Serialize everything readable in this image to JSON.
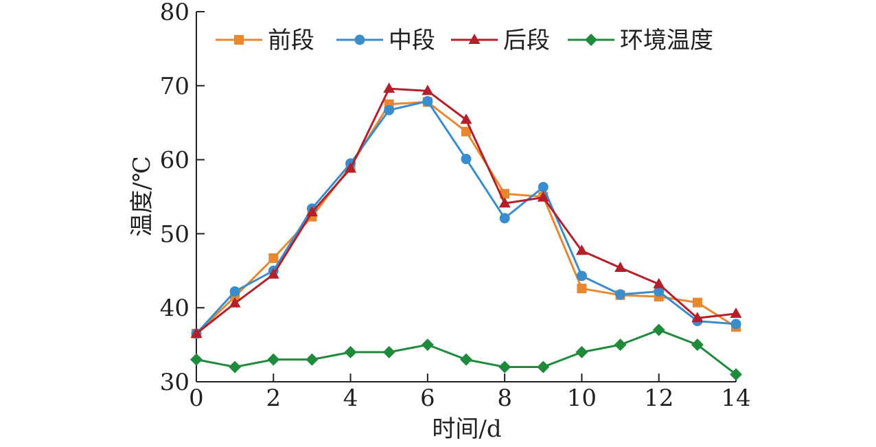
{
  "chart_data": {
    "type": "line",
    "xlabel": "时间/d",
    "ylabel": "温度/℃",
    "xlim": [
      0,
      14
    ],
    "ylim": [
      30,
      80
    ],
    "xticks": [
      0,
      2,
      4,
      6,
      8,
      10,
      12,
      14
    ],
    "yticks": [
      30,
      40,
      50,
      60,
      70,
      80
    ],
    "grid": false,
    "legend_position": "top",
    "x": [
      0,
      1,
      2,
      3,
      4,
      5,
      6,
      7,
      8,
      9,
      10,
      11,
      12,
      13,
      14
    ],
    "series": [
      {
        "name": "前段",
        "color": "#e8872e",
        "marker": "square",
        "values": [
          36.5,
          41.5,
          46.7,
          52.3,
          59.1,
          67.5,
          67.8,
          63.8,
          55.4,
          55.0,
          42.6,
          41.7,
          41.5,
          40.7,
          37.4
        ]
      },
      {
        "name": "中段",
        "color": "#3a8dcc",
        "marker": "circle",
        "values": [
          36.5,
          42.2,
          45.0,
          53.4,
          59.5,
          66.7,
          67.9,
          60.1,
          52.1,
          56.3,
          44.3,
          41.8,
          42.2,
          38.2,
          37.8
        ]
      },
      {
        "name": "后段",
        "color": "#b3202a",
        "marker": "triangle",
        "values": [
          36.5,
          40.6,
          44.5,
          52.9,
          58.8,
          69.6,
          69.3,
          65.4,
          54.1,
          54.9,
          47.7,
          45.4,
          43.2,
          38.6,
          39.2
        ]
      },
      {
        "name": "环境温度",
        "color": "#1f8a3c",
        "marker": "diamond",
        "values": [
          33,
          32,
          33,
          33,
          34,
          34,
          35,
          33,
          32,
          32,
          34,
          35,
          37,
          35,
          31
        ]
      }
    ]
  }
}
